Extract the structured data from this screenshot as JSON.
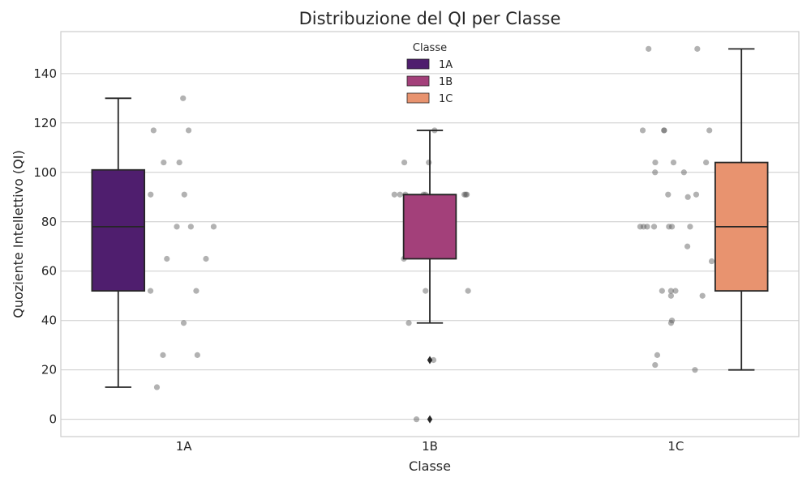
{
  "chart_data": {
    "type": "box",
    "title": "Distribuzione del QI per Classe",
    "xlabel": "Classe",
    "ylabel": "Quoziente Intellettivo (QI)",
    "categories": [
      "1A",
      "1B",
      "1C"
    ],
    "ylim": [
      -7,
      157
    ],
    "yticks": [
      0,
      20,
      40,
      60,
      80,
      100,
      120,
      140
    ],
    "grid": true,
    "legend": {
      "title": "Classe",
      "placement": "top-center",
      "entries": [
        {
          "label": "1A",
          "color": "#4f1e6e"
        },
        {
          "label": "1B",
          "color": "#a3407a"
        },
        {
          "label": "1C",
          "color": "#e8936f"
        }
      ]
    },
    "series": [
      {
        "category": "1A",
        "color": "#4f1e6e",
        "box": {
          "whisker_low": 13,
          "q1": 52,
          "median": 78,
          "q3": 101,
          "whisker_high": 130
        },
        "outliers": [],
        "points": [
          130,
          117,
          117,
          104,
          104,
          91,
          91,
          78,
          78,
          78,
          65,
          65,
          52,
          52,
          39,
          26,
          26,
          13
        ]
      },
      {
        "category": "1B",
        "color": "#a3407a",
        "box": {
          "whisker_low": 39,
          "q1": 65,
          "median": 91,
          "q3": 91,
          "whisker_high": 117
        },
        "outliers": [
          24,
          0
        ],
        "points": [
          117,
          104,
          104,
          91,
          91,
          91,
          91,
          91,
          91,
          91,
          91,
          78,
          78,
          77,
          65,
          52,
          52,
          39,
          24,
          0
        ]
      },
      {
        "category": "1C",
        "color": "#e8936f",
        "box": {
          "whisker_low": 20,
          "q1": 52,
          "median": 78,
          "q3": 104,
          "whisker_high": 150
        },
        "outliers": [],
        "points": [
          150,
          150,
          117,
          117,
          117,
          117,
          104,
          104,
          104,
          100,
          100,
          91,
          91,
          90,
          78,
          78,
          78,
          78,
          78,
          78,
          78,
          70,
          64,
          52,
          52,
          52,
          50,
          50,
          40,
          39,
          26,
          22,
          20
        ]
      }
    ]
  }
}
